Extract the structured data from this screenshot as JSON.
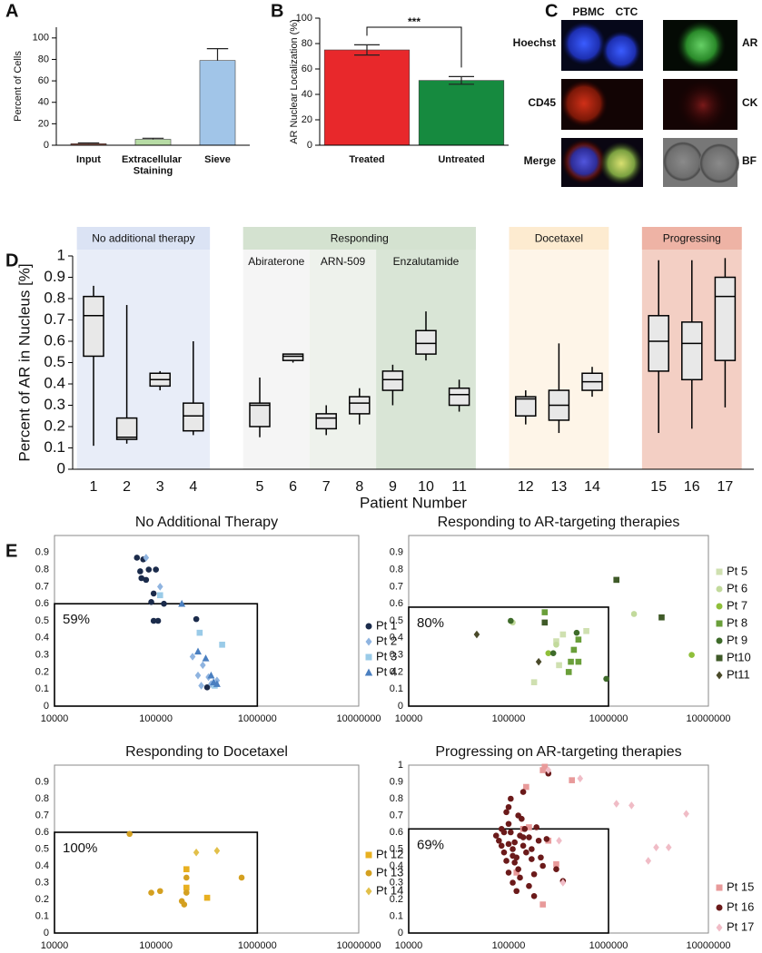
{
  "panel_labels": [
    "A",
    "B",
    "C",
    "D",
    "E"
  ],
  "image_panel": {
    "columns": [
      "PBMC",
      "CTC"
    ],
    "rows": [
      {
        "left": "Hoechst",
        "right": "AR"
      },
      {
        "left": "CD45",
        "right": "CK"
      },
      {
        "left": "Merge",
        "right": "BF"
      }
    ]
  },
  "chart_data": [
    {
      "type": "bar",
      "categories": [
        "Input",
        "Extracellular Staining",
        "Sieve"
      ],
      "values": [
        1.5,
        5.5,
        79
      ],
      "errors": [
        0.6,
        1,
        11
      ],
      "error_bars": "up",
      "colors": [
        "#9a5a4c",
        "#b7dca5",
        "#a1c5e8"
      ],
      "ylabel": "Percent of Cells",
      "ylim": [
        0,
        110
      ],
      "yticks": [
        0,
        20,
        40,
        60,
        80,
        100
      ]
    },
    {
      "type": "bar",
      "categories": [
        "Treated",
        "Untreated"
      ],
      "values": [
        75,
        51
      ],
      "errors": [
        4,
        3
      ],
      "error_bars": "both",
      "colors": [
        "#e8282b",
        "#168a3f"
      ],
      "ylabel": "AR Nuclear Localization (%)",
      "ylim": [
        0,
        100
      ],
      "yticks": [
        0,
        20,
        40,
        60,
        80,
        100
      ],
      "annotation": "***"
    },
    {
      "type": "box",
      "ylabel": "Percent of AR in Nucleus [%]",
      "xlabel": "Patient Number",
      "ylim": [
        0,
        1
      ],
      "yticks": [
        0,
        0.1,
        0.2,
        0.3,
        0.4,
        0.5,
        0.6,
        0.7,
        0.8,
        0.9,
        1
      ],
      "groups": [
        {
          "name": "No additional therapy",
          "color": "#e8edf8",
          "header_color": "#dbe3f4",
          "categories": [
            "1",
            "2",
            "3",
            "4"
          ],
          "boxes": [
            {
              "min": 0.11,
              "q1": 0.53,
              "median": 0.72,
              "q3": 0.81,
              "max": 0.86
            },
            {
              "min": 0.12,
              "q1": 0.14,
              "median": 0.15,
              "q3": 0.24,
              "max": 0.77
            },
            {
              "min": 0.37,
              "q1": 0.39,
              "median": 0.42,
              "q3": 0.45,
              "max": 0.46
            },
            {
              "min": 0.16,
              "q1": 0.18,
              "median": 0.25,
              "q3": 0.31,
              "max": 0.6
            }
          ]
        },
        {
          "name": "Responding",
          "header_color": "#d4e2d0",
          "subgroups": [
            {
              "name": "Abiraterone",
              "color": "#f5f5f5",
              "categories": [
                "5",
                "6"
              ],
              "boxes": [
                {
                  "min": 0.15,
                  "q1": 0.2,
                  "median": 0.3,
                  "q3": 0.31,
                  "max": 0.43
                },
                {
                  "min": 0.5,
                  "q1": 0.51,
                  "median": 0.53,
                  "q3": 0.54,
                  "max": 0.54
                }
              ]
            },
            {
              "name": "ARN-509",
              "color": "#eef2ec",
              "categories": [
                "7",
                "8"
              ],
              "boxes": [
                {
                  "min": 0.16,
                  "q1": 0.19,
                  "median": 0.24,
                  "q3": 0.26,
                  "max": 0.3
                },
                {
                  "min": 0.21,
                  "q1": 0.26,
                  "median": 0.31,
                  "q3": 0.34,
                  "max": 0.38
                }
              ]
            },
            {
              "name": "Enzalutamide",
              "color": "#d9e5d6",
              "categories": [
                "9",
                "10",
                "11"
              ],
              "boxes": [
                {
                  "min": 0.3,
                  "q1": 0.37,
                  "median": 0.42,
                  "q3": 0.46,
                  "max": 0.49
                },
                {
                  "min": 0.51,
                  "q1": 0.54,
                  "median": 0.59,
                  "q3": 0.65,
                  "max": 0.74
                },
                {
                  "min": 0.27,
                  "q1": 0.3,
                  "median": 0.35,
                  "q3": 0.38,
                  "max": 0.42
                }
              ]
            }
          ]
        },
        {
          "name": "Docetaxel",
          "color": "#fef5e8",
          "header_color": "#fdebd0",
          "categories": [
            "12",
            "13",
            "14"
          ],
          "boxes": [
            {
              "min": 0.21,
              "q1": 0.25,
              "median": 0.33,
              "q3": 0.34,
              "max": 0.37
            },
            {
              "min": 0.17,
              "q1": 0.23,
              "median": 0.3,
              "q3": 0.37,
              "max": 0.59
            },
            {
              "min": 0.34,
              "q1": 0.37,
              "median": 0.41,
              "q3": 0.45,
              "max": 0.48
            }
          ]
        },
        {
          "name": "Progressing",
          "color": "#f3cfc4",
          "header_color": "#eeb3a5",
          "categories": [
            "15",
            "16",
            "17"
          ],
          "boxes": [
            {
              "min": 0.17,
              "q1": 0.46,
              "median": 0.6,
              "q3": 0.72,
              "max": 0.98
            },
            {
              "min": 0.19,
              "q1": 0.42,
              "median": 0.59,
              "q3": 0.69,
              "max": 0.98
            },
            {
              "min": 0.29,
              "q1": 0.51,
              "median": 0.81,
              "q3": 0.9,
              "max": 0.99
            }
          ]
        }
      ]
    },
    {
      "type": "scatter",
      "title": "No Additional Therapy",
      "xscale": "log",
      "xlim": [
        10000,
        10000000
      ],
      "xticks": [
        10000,
        100000,
        1000000,
        10000000
      ],
      "ylim": [
        0,
        1
      ],
      "yticks": [
        0,
        0.1,
        0.2,
        0.3,
        0.4,
        0.5,
        0.6,
        0.7,
        0.8,
        0.9
      ],
      "highlight_box": {
        "xlim": [
          10000,
          1000000
        ],
        "ylim": [
          0,
          0.6
        ],
        "label": "59%"
      },
      "series": [
        {
          "name": "Pt 1",
          "color": "#1b2b4b",
          "marker": "circle",
          "x": [
            65000,
            75000,
            85000,
            70000,
            72000,
            80000,
            100000,
            95000,
            90000,
            105000,
            95000,
            120000,
            250000,
            320000
          ],
          "values": [
            0.87,
            0.86,
            0.8,
            0.79,
            0.75,
            0.74,
            0.8,
            0.66,
            0.61,
            0.5,
            0.5,
            0.6,
            0.51,
            0.11
          ]
        },
        {
          "name": "Pt 2",
          "color": "#8fb4e0",
          "marker": "diamond",
          "x": [
            110000,
            80000,
            280000,
            350000,
            330000,
            260000,
            230000,
            290000,
            400000
          ],
          "values": [
            0.7,
            0.87,
            0.12,
            0.13,
            0.17,
            0.18,
            0.29,
            0.24,
            0.15
          ]
        },
        {
          "name": "Pt 3",
          "color": "#9acbe8",
          "marker": "square",
          "x": [
            270000,
            450000,
            380000,
            110000
          ],
          "values": [
            0.43,
            0.36,
            0.12,
            0.65
          ]
        },
        {
          "name": "Pt 4",
          "color": "#4a7fc0",
          "marker": "triangle",
          "x": [
            180000,
            260000,
            310000,
            350000,
            370000,
            400000
          ],
          "values": [
            0.6,
            0.32,
            0.28,
            0.18,
            0.14,
            0.13
          ]
        }
      ]
    },
    {
      "type": "scatter",
      "title": "Responding to AR-targeting therapies",
      "xscale": "log",
      "xlim": [
        10000,
        10000000
      ],
      "xticks": [
        10000,
        100000,
        1000000,
        10000000
      ],
      "ylim": [
        0,
        1
      ],
      "yticks": [
        0,
        0.1,
        0.2,
        0.3,
        0.4,
        0.5,
        0.6,
        0.7,
        0.8,
        0.9
      ],
      "highlight_box": {
        "xlim": [
          10000,
          1000000
        ],
        "ylim": [
          0,
          0.58
        ],
        "label": "80%"
      },
      "series": [
        {
          "name": "Pt 5",
          "color": "#cfe0b0",
          "marker": "square",
          "x": [
            350000,
            300000,
            320000,
            400000,
            180000,
            600000
          ],
          "values": [
            0.42,
            0.38,
            0.24,
            0.2,
            0.14,
            0.44
          ]
        },
        {
          "name": "Pt 6",
          "color": "#c2da9c",
          "marker": "circle",
          "x": [
            110000,
            1800000,
            300000
          ],
          "values": [
            0.49,
            0.54,
            0.36
          ]
        },
        {
          "name": "Pt 7",
          "color": "#8fbf3a",
          "marker": "circle",
          "x": [
            6800000,
            250000
          ],
          "values": [
            0.3,
            0.31
          ]
        },
        {
          "name": "Pt 8",
          "color": "#6a9f3a",
          "marker": "square",
          "x": [
            230000,
            500000,
            450000,
            500000,
            420000,
            400000
          ],
          "values": [
            0.55,
            0.39,
            0.33,
            0.26,
            0.26,
            0.2
          ]
        },
        {
          "name": "Pt 9",
          "color": "#3e6b2a",
          "marker": "circle",
          "x": [
            105000,
            280000,
            950000,
            480000
          ],
          "values": [
            0.5,
            0.31,
            0.16,
            0.43
          ]
        },
        {
          "name": "Pt10",
          "color": "#3f5a28",
          "marker": "square",
          "x": [
            1200000,
            3400000,
            230000
          ],
          "values": [
            0.74,
            0.52,
            0.49
          ]
        },
        {
          "name": "Pt11",
          "color": "#4a4a2a",
          "marker": "diamond",
          "x": [
            48000,
            200000
          ],
          "values": [
            0.42,
            0.26
          ]
        }
      ]
    },
    {
      "type": "scatter",
      "title": "Responding to Docetaxel",
      "xscale": "log",
      "xlim": [
        10000,
        10000000
      ],
      "xticks": [
        10000,
        100000,
        1000000,
        10000000
      ],
      "ylim": [
        0,
        1
      ],
      "yticks": [
        0,
        0.1,
        0.2,
        0.3,
        0.4,
        0.5,
        0.6,
        0.7,
        0.8,
        0.9
      ],
      "highlight_box": {
        "xlim": [
          10000,
          1000000
        ],
        "ylim": [
          0,
          0.6
        ],
        "label": "100%"
      },
      "series": [
        {
          "name": "Pt 12",
          "color": "#e8b020",
          "marker": "square",
          "x": [
            200000,
            320000,
            200000
          ],
          "values": [
            0.38,
            0.21,
            0.27
          ]
        },
        {
          "name": "Pt 13",
          "color": "#d4a020",
          "marker": "circle",
          "x": [
            55000,
            90000,
            110000,
            200000,
            190000,
            700000,
            200000,
            180000
          ],
          "values": [
            0.59,
            0.24,
            0.25,
            0.24,
            0.17,
            0.33,
            0.33,
            0.19
          ]
        },
        {
          "name": "Pt 14",
          "color": "#e2c04a",
          "marker": "diamond",
          "x": [
            400000,
            250000
          ],
          "values": [
            0.49,
            0.48
          ]
        }
      ]
    },
    {
      "type": "scatter",
      "title": "Progressing on AR-targeting therapies",
      "xscale": "log",
      "xlim": [
        10000,
        10000000
      ],
      "xticks": [
        10000,
        100000,
        1000000,
        10000000
      ],
      "ylim": [
        0,
        1
      ],
      "yticks": [
        0,
        0.1,
        0.2,
        0.3,
        0.4,
        0.5,
        0.6,
        0.7,
        0.8,
        0.9,
        1
      ],
      "highlight_box": {
        "xlim": [
          10000,
          1000000
        ],
        "ylim": [
          0,
          0.62
        ],
        "label": "69%"
      },
      "series": [
        {
          "name": "Pt 15",
          "color": "#e89a9a",
          "marker": "square",
          "x": [
            230000,
            220000,
            430000,
            150000,
            250000,
            160000,
            220000,
            120000,
            300000,
            140000
          ],
          "values": [
            0.99,
            0.97,
            0.91,
            0.87,
            0.55,
            0.63,
            0.17,
            0.36,
            0.41,
            0.62
          ]
        },
        {
          "name": "Pt 16",
          "color": "#6b1a1a",
          "marker": "circle",
          "x": [
            80000,
            90000,
            100000,
            110000,
            120000,
            130000,
            95000,
            105000,
            115000,
            125000,
            140000,
            150000,
            85000,
            100000,
            160000,
            170000,
            180000,
            75000,
            110000,
            120000,
            135000,
            145000,
            200000,
            220000,
            250000,
            90000,
            100000,
            130000,
            160000,
            190000,
            95000,
            110000,
            125000,
            140000,
            300000,
            350000,
            180000,
            105000,
            115000,
            85000,
            140000,
            170000,
            210000,
            240000,
            100000
          ],
          "values": [
            0.55,
            0.6,
            0.65,
            0.5,
            0.45,
            0.58,
            0.72,
            0.8,
            0.42,
            0.38,
            0.52,
            0.48,
            0.62,
            0.75,
            0.57,
            0.44,
            0.35,
            0.58,
            0.3,
            0.25,
            0.68,
            0.62,
            0.55,
            0.4,
            0.95,
            0.48,
            0.53,
            0.33,
            0.28,
            0.63,
            0.43,
            0.46,
            0.7,
            0.57,
            0.38,
            0.31,
            0.22,
            0.6,
            0.54,
            0.52,
            0.84,
            0.5,
            0.45,
            0.56,
            0.36
          ]
        },
        {
          "name": "Pt 17",
          "color": "#f0bcc6",
          "marker": "diamond",
          "x": [
            520000,
            1200000,
            1700000,
            2500000,
            3000000,
            4000000,
            6000000,
            350000,
            250000,
            320000
          ],
          "values": [
            0.92,
            0.77,
            0.76,
            0.43,
            0.51,
            0.51,
            0.71,
            0.3,
            0.97,
            0.55
          ]
        }
      ]
    }
  ]
}
